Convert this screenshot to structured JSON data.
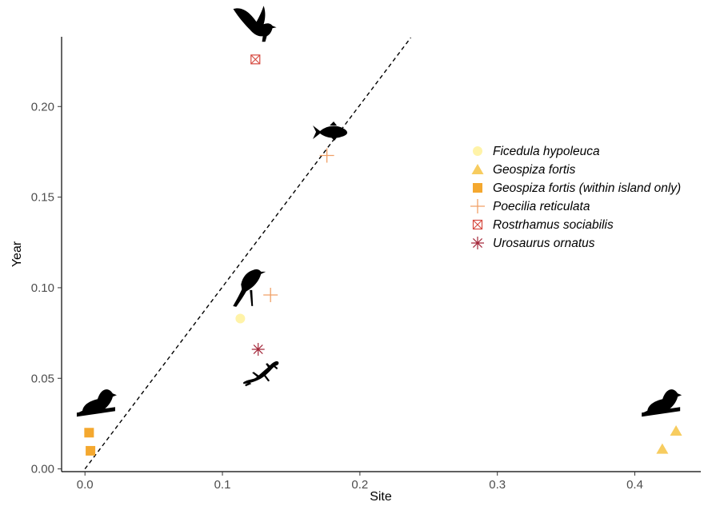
{
  "chart_data": {
    "type": "scatter",
    "xlabel": "Site",
    "ylabel": "Year",
    "xlim": [
      -0.017,
      0.448
    ],
    "ylim": [
      -0.0015,
      0.2385
    ],
    "x_ticks": [
      0.0,
      0.1,
      0.2,
      0.3,
      0.4
    ],
    "x_tick_labels": [
      "0.0",
      "0.1",
      "0.2",
      "0.3",
      "0.4"
    ],
    "y_ticks": [
      0.0,
      0.05,
      0.1,
      0.15,
      0.2
    ],
    "y_tick_labels": [
      "0.00",
      "0.05",
      "0.10",
      "0.15",
      "0.20"
    ],
    "grid": false,
    "legend_position": "right",
    "reference_line": {
      "style": "dashed",
      "color": "#000000",
      "from": [
        0.0,
        0.0
      ],
      "to": [
        0.237,
        0.238
      ]
    },
    "series": [
      {
        "name": "Ficedula hypoleuca",
        "marker": "circle",
        "color": "#FFF3A8",
        "points": [
          [
            0.113,
            0.083
          ]
        ]
      },
      {
        "name": "Geospiza fortis",
        "marker": "triangle",
        "color": "#F7CC5F",
        "points": [
          [
            0.42,
            0.011
          ],
          [
            0.43,
            0.021
          ]
        ]
      },
      {
        "name": "Geospiza fortis (within island only)",
        "marker": "square",
        "color": "#F4A82F",
        "points": [
          [
            0.004,
            0.01
          ],
          [
            0.003,
            0.02
          ]
        ]
      },
      {
        "name": "Poecilia reticulata",
        "marker": "plus",
        "color": "#F0A066",
        "points": [
          [
            0.135,
            0.096
          ],
          [
            0.176,
            0.173
          ]
        ]
      },
      {
        "name": "Rostrhamus sociabilis",
        "marker": "square-x",
        "color": "#D64A40",
        "points": [
          [
            0.124,
            0.226
          ]
        ]
      },
      {
        "name": "Urosaurus ornatus",
        "marker": "asterisk",
        "color": "#A4283B",
        "points": [
          [
            0.126,
            0.066
          ]
        ]
      }
    ],
    "silhouettes": [
      {
        "icon": "finch-on-branch-icon",
        "x": 0.008,
        "y": 0.035
      },
      {
        "icon": "flycatcher-icon",
        "x": 0.117,
        "y": 0.1
      },
      {
        "icon": "lizard-icon",
        "x": 0.128,
        "y": 0.054
      },
      {
        "icon": "fish-icon",
        "x": 0.178,
        "y": 0.186
      },
      {
        "icon": "kite-icon",
        "x": 0.123,
        "y": 0.245
      },
      {
        "icon": "finch-on-branch-icon",
        "x": 0.419,
        "y": 0.035
      }
    ]
  }
}
